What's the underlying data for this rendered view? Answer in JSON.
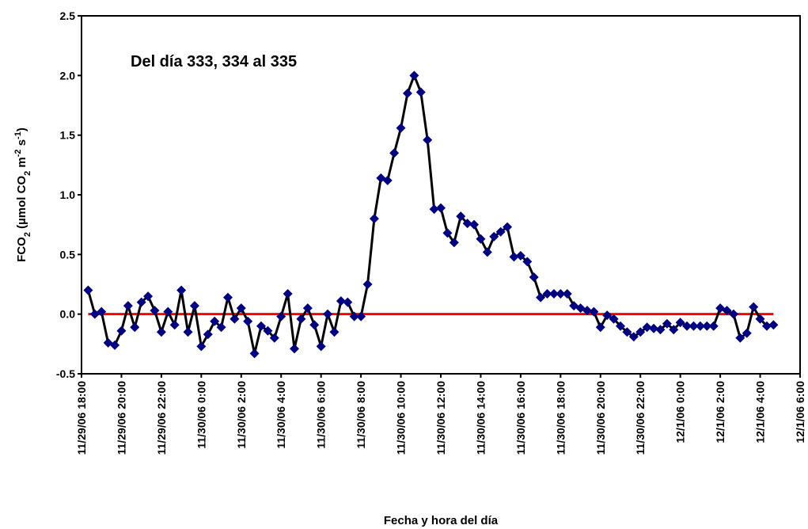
{
  "chart_data": {
    "type": "line",
    "annotation": "Del día 333, 334 al 335",
    "x_label": "Fecha y hora del día",
    "y_label": [
      {
        "text": "FCO"
      },
      {
        "text": "2",
        "sub": true
      },
      {
        "text": " (µmol CO"
      },
      {
        "text": "2",
        "sub": true
      },
      {
        "text": " m"
      },
      {
        "text": "-2",
        "sup": true
      },
      {
        "text": " s"
      },
      {
        "text": "-1",
        "sup": true
      },
      {
        "text": ")"
      }
    ],
    "x": [
      "2006-11-29T18:20",
      "2006-11-29T18:40",
      "2006-11-29T19:00",
      "2006-11-29T19:20",
      "2006-11-29T19:40",
      "2006-11-29T20:00",
      "2006-11-29T20:20",
      "2006-11-29T20:40",
      "2006-11-29T21:00",
      "2006-11-29T21:20",
      "2006-11-29T21:40",
      "2006-11-29T22:00",
      "2006-11-29T22:20",
      "2006-11-29T22:40",
      "2006-11-29T23:00",
      "2006-11-29T23:20",
      "2006-11-29T23:40",
      "2006-11-30T00:00",
      "2006-11-30T00:20",
      "2006-11-30T00:40",
      "2006-11-30T01:00",
      "2006-11-30T01:20",
      "2006-11-30T01:40",
      "2006-11-30T02:00",
      "2006-11-30T02:20",
      "2006-11-30T02:40",
      "2006-11-30T03:00",
      "2006-11-30T03:20",
      "2006-11-30T03:40",
      "2006-11-30T04:00",
      "2006-11-30T04:20",
      "2006-11-30T04:40",
      "2006-11-30T05:00",
      "2006-11-30T05:20",
      "2006-11-30T05:40",
      "2006-11-30T06:00",
      "2006-11-30T06:20",
      "2006-11-30T06:40",
      "2006-11-30T07:00",
      "2006-11-30T07:20",
      "2006-11-30T07:40",
      "2006-11-30T08:00",
      "2006-11-30T08:20",
      "2006-11-30T08:40",
      "2006-11-30T09:00",
      "2006-11-30T09:20",
      "2006-11-30T09:40",
      "2006-11-30T10:00",
      "2006-11-30T10:20",
      "2006-11-30T10:40",
      "2006-11-30T11:00",
      "2006-11-30T11:20",
      "2006-11-30T11:40",
      "2006-11-30T12:00",
      "2006-11-30T12:20",
      "2006-11-30T12:40",
      "2006-11-30T13:00",
      "2006-11-30T13:20",
      "2006-11-30T13:40",
      "2006-11-30T14:00",
      "2006-11-30T14:20",
      "2006-11-30T14:40",
      "2006-11-30T15:00",
      "2006-11-30T15:20",
      "2006-11-30T15:40",
      "2006-11-30T16:00",
      "2006-11-30T16:20",
      "2006-11-30T16:40",
      "2006-11-30T17:00",
      "2006-11-30T17:20",
      "2006-11-30T17:40",
      "2006-11-30T18:00",
      "2006-11-30T18:20",
      "2006-11-30T18:40",
      "2006-11-30T19:00",
      "2006-11-30T19:20",
      "2006-11-30T19:40",
      "2006-11-30T20:00",
      "2006-11-30T20:20",
      "2006-11-30T20:40",
      "2006-11-30T21:00",
      "2006-11-30T21:20",
      "2006-11-30T21:40",
      "2006-11-30T22:00",
      "2006-11-30T22:20",
      "2006-11-30T22:40",
      "2006-11-30T23:00",
      "2006-11-30T23:20",
      "2006-11-30T23:40",
      "2006-12-01T00:00",
      "2006-12-01T00:20",
      "2006-12-01T00:40",
      "2006-12-01T01:00",
      "2006-12-01T01:20",
      "2006-12-01T01:40",
      "2006-12-01T02:00",
      "2006-12-01T02:20",
      "2006-12-01T02:40",
      "2006-12-01T03:00",
      "2006-12-01T03:20",
      "2006-12-01T03:40",
      "2006-12-01T04:00",
      "2006-12-01T04:20",
      "2006-12-01T04:40"
    ],
    "series": [
      {
        "line_color": "#000000",
        "color": "#000080",
        "values": [
          0.2,
          0.0,
          0.02,
          -0.24,
          -0.26,
          -0.14,
          0.07,
          -0.11,
          0.1,
          0.15,
          0.03,
          -0.15,
          0.02,
          -0.09,
          0.2,
          -0.15,
          0.07,
          -0.27,
          -0.17,
          -0.06,
          -0.11,
          0.14,
          -0.04,
          0.05,
          -0.06,
          -0.33,
          -0.1,
          -0.14,
          -0.2,
          -0.02,
          0.17,
          -0.29,
          -0.04,
          0.05,
          -0.09,
          -0.27,
          0.0,
          -0.15,
          0.11,
          0.1,
          -0.02,
          -0.02,
          0.25,
          0.8,
          1.14,
          1.12,
          1.35,
          1.56,
          1.85,
          2.0,
          1.86,
          1.46,
          0.88,
          0.89,
          0.68,
          0.6,
          0.82,
          0.76,
          0.75,
          0.63,
          0.52,
          0.65,
          0.69,
          0.73,
          0.48,
          0.49,
          0.44,
          0.31,
          0.14,
          0.17,
          0.17,
          0.17,
          0.17,
          0.07,
          0.05,
          0.03,
          0.02,
          -0.11,
          -0.01,
          -0.04,
          -0.1,
          -0.15,
          -0.19,
          -0.15,
          -0.11,
          -0.12,
          -0.13,
          -0.08,
          -0.13,
          -0.07,
          -0.1,
          -0.1,
          -0.1,
          -0.1,
          -0.1,
          0.05,
          0.03,
          0.0,
          -0.2,
          -0.16,
          0.06,
          -0.04,
          -0.1,
          -0.09
        ]
      }
    ],
    "reference_line": {
      "value": 0,
      "color": "#ff0000"
    },
    "xlim": [
      "2006-11-29T18:00",
      "2006-12-01T06:00"
    ],
    "xticks": [
      {
        "value": "2006-11-29T18:00",
        "label": "11/29/06 18:00"
      },
      {
        "value": "2006-11-29T20:00",
        "label": "11/29/06 20:00"
      },
      {
        "value": "2006-11-29T22:00",
        "label": "11/29/06 22:00"
      },
      {
        "value": "2006-11-30T00:00",
        "label": "11/30/06 0:00"
      },
      {
        "value": "2006-11-30T02:00",
        "label": "11/30/06 2:00"
      },
      {
        "value": "2006-11-30T04:00",
        "label": "11/30/06 4:00"
      },
      {
        "value": "2006-11-30T06:00",
        "label": "11/30/06 6:00"
      },
      {
        "value": "2006-11-30T08:00",
        "label": "11/30/06 8:00"
      },
      {
        "value": "2006-11-30T10:00",
        "label": "11/30/06 10:00"
      },
      {
        "value": "2006-11-30T12:00",
        "label": "11/30/06 12:00"
      },
      {
        "value": "2006-11-30T14:00",
        "label": "11/30/06 14:00"
      },
      {
        "value": "2006-11-30T16:00",
        "label": "11/30/06 16:00"
      },
      {
        "value": "2006-11-30T18:00",
        "label": "11/30/06 18:00"
      },
      {
        "value": "2006-11-30T20:00",
        "label": "11/30/06 20:00"
      },
      {
        "value": "2006-11-30T22:00",
        "label": "11/30/06 22:00"
      },
      {
        "value": "2006-12-01T00:00",
        "label": "12/1/06 0:00"
      },
      {
        "value": "2006-12-01T02:00",
        "label": "12/1/06 2:00"
      },
      {
        "value": "2006-12-01T04:00",
        "label": "12/1/06 4:00"
      },
      {
        "value": "2006-12-01T06:00",
        "label": "12/1/06 6:00"
      }
    ],
    "ylim": [
      -0.5,
      2.5
    ],
    "yticks": [
      -0.5,
      {
        "value": 0,
        "label": "0.0"
      },
      0.5,
      {
        "value": 1,
        "label": "1.0"
      },
      1.5,
      {
        "value": 2,
        "label": "2.0"
      },
      2.5
    ],
    "grid": false
  }
}
